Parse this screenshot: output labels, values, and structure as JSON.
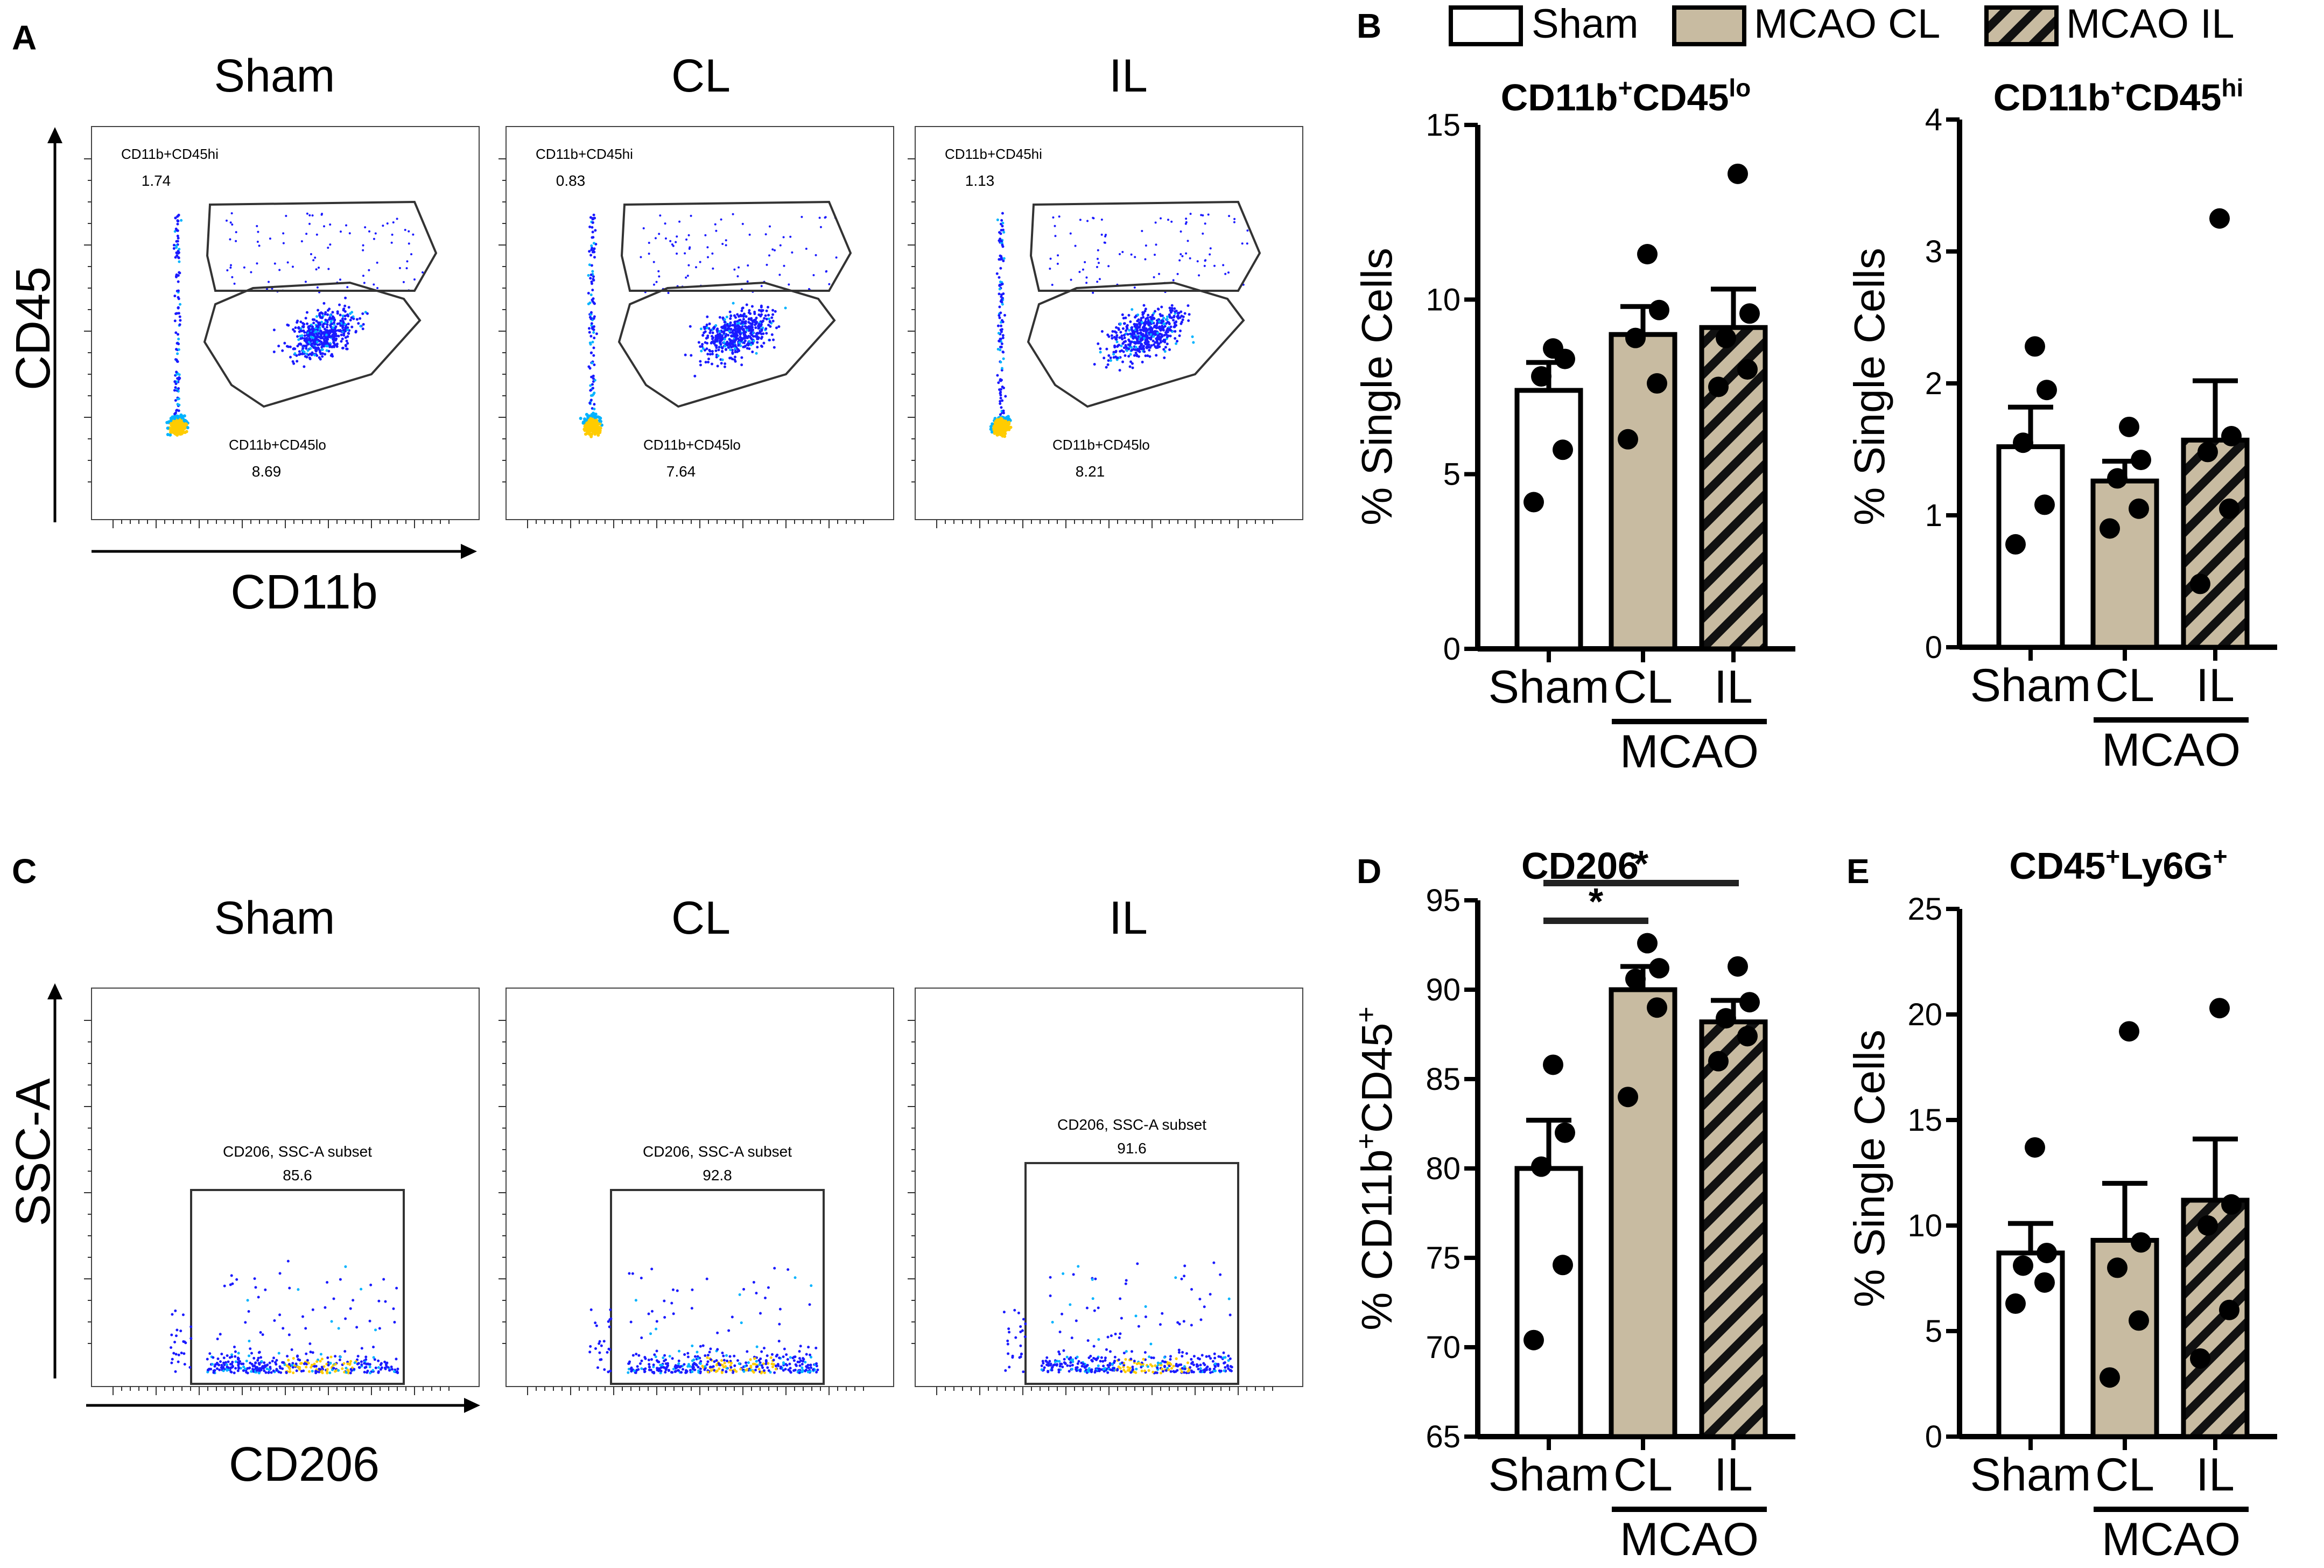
{
  "panel_letters": {
    "a": "A",
    "b": "B",
    "c": "C",
    "d": "D",
    "e": "E"
  },
  "legend": {
    "entries": [
      {
        "label": "Sham",
        "style": "open"
      },
      {
        "label": "MCAO CL",
        "style": "filled"
      },
      {
        "label": "MCAO IL",
        "style": "hatched"
      }
    ]
  },
  "colors": {
    "bar_fill": "#c8bba1",
    "axis": "#000000",
    "dot": "#000000",
    "flow_low": "#1a1aff",
    "flow_mid": "#00b3ff",
    "flow_high": "#ffcc00"
  },
  "flow_A": {
    "titles": [
      "Sham",
      "CL",
      "IL"
    ],
    "xlabel": "CD11b",
    "ylabel": "CD45",
    "gate_hi_label": "CD11b+CD45hi",
    "gate_lo_label": "CD11b+CD45lo",
    "hi_values": [
      "1.74",
      "0.83",
      "1.13"
    ],
    "lo_values": [
      "8.69",
      "7.64",
      "8.21"
    ]
  },
  "flow_C": {
    "titles": [
      "Sham",
      "CL",
      "IL"
    ],
    "xlabel": "CD206",
    "ylabel": "SSC-A",
    "gate_label": "CD206, SSC-A subset",
    "values": [
      "85.6",
      "92.8",
      "91.6"
    ]
  },
  "chart_data": [
    {
      "id": "B1",
      "type": "bar",
      "title": "CD11b+CD45lo",
      "title_parts": {
        "base": "CD11b",
        "sup1": "+",
        "mid": "CD45",
        "sup2": "lo"
      },
      "ylabel": "% Single Cells",
      "ylim": [
        0,
        15
      ],
      "yticks": [
        0,
        5,
        10,
        15
      ],
      "categories": [
        "Sham",
        "CL",
        "IL"
      ],
      "group_label": "MCAO",
      "means": [
        7.4,
        9.0,
        9.2
      ],
      "sem": [
        0.8,
        0.8,
        1.1
      ],
      "points": [
        [
          4.2,
          5.7,
          7.8,
          8.3,
          8.6
        ],
        [
          6.0,
          7.6,
          8.9,
          9.7,
          11.3
        ],
        [
          7.5,
          8.0,
          8.9,
          9.6,
          13.6
        ]
      ],
      "significance": []
    },
    {
      "id": "B2",
      "type": "bar",
      "title": "CD11b+CD45hi",
      "title_parts": {
        "base": "CD11b",
        "sup1": "+",
        "mid": "CD45",
        "sup2": "hi"
      },
      "ylabel": "% Single Cells",
      "ylim": [
        0,
        4
      ],
      "yticks": [
        0,
        1,
        2,
        3,
        4
      ],
      "categories": [
        "Sham",
        "CL",
        "IL"
      ],
      "group_label": "MCAO",
      "means": [
        1.52,
        1.26,
        1.57
      ],
      "sem": [
        0.3,
        0.15,
        0.45
      ],
      "points": [
        [
          0.78,
          1.08,
          1.55,
          1.95,
          2.28
        ],
        [
          0.9,
          1.05,
          1.28,
          1.42,
          1.67
        ],
        [
          0.48,
          1.05,
          1.48,
          1.6,
          3.25
        ]
      ],
      "significance": []
    },
    {
      "id": "D",
      "type": "bar",
      "title": "CD206",
      "ylabel": "% CD11b+CD45+",
      "ylabel_parts": {
        "pre": "% CD11b",
        "sup1": "+",
        "mid": "CD45",
        "sup2": "+"
      },
      "ylim": [
        65,
        95
      ],
      "yticks": [
        65,
        70,
        75,
        80,
        85,
        90,
        95
      ],
      "categories": [
        "Sham",
        "CL",
        "IL"
      ],
      "group_label": "MCAO",
      "means": [
        80.0,
        90.0,
        88.2
      ],
      "sem": [
        2.7,
        1.3,
        1.2
      ],
      "points": [
        [
          70.4,
          74.6,
          80.1,
          82.0,
          85.8
        ],
        [
          84.0,
          89.0,
          90.6,
          91.2,
          92.6
        ],
        [
          86.0,
          87.4,
          88.4,
          89.3,
          91.3
        ]
      ],
      "significance": [
        {
          "from": 0,
          "to": 1,
          "label": "*"
        },
        {
          "from": 0,
          "to": 2,
          "label": "*"
        }
      ]
    },
    {
      "id": "E",
      "type": "bar",
      "title": "CD45+Ly6G+",
      "title_parts": {
        "base": "CD45",
        "sup1": "+",
        "mid": "Ly6G",
        "sup2": "+"
      },
      "ylabel": "% Single Cells",
      "ylim": [
        0,
        25
      ],
      "yticks": [
        0,
        5,
        10,
        15,
        20,
        25
      ],
      "categories": [
        "Sham",
        "CL",
        "IL"
      ],
      "group_label": "MCAO",
      "means": [
        8.7,
        9.3,
        11.2
      ],
      "sem": [
        1.4,
        2.7,
        2.9
      ],
      "points": [
        [
          6.3,
          7.3,
          8.1,
          8.7,
          13.7
        ],
        [
          2.8,
          5.5,
          8.0,
          9.2,
          19.2
        ],
        [
          3.7,
          6.0,
          10.0,
          11.0,
          20.3
        ]
      ],
      "significance": []
    }
  ]
}
